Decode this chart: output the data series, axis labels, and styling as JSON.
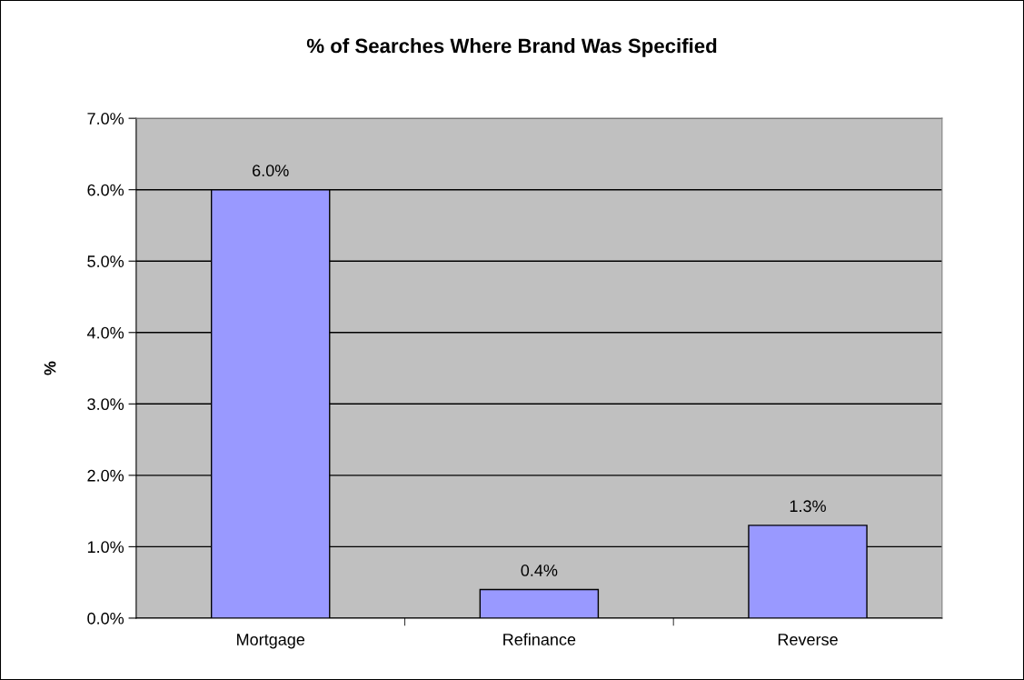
{
  "chart_data": {
    "type": "bar",
    "title": "% of Searches Where Brand Was Specified",
    "ylabel": "%",
    "categories": [
      "Mortgage",
      "Refinance",
      "Reverse"
    ],
    "values": [
      6.0,
      0.4,
      1.3
    ],
    "color": "#9999ff",
    "value_labels": [
      "6.0%",
      "0.4%",
      "1.3%"
    ],
    "ylim": [
      0,
      7
    ],
    "yticks": [
      {
        "value": 0,
        "label": "0.0%"
      },
      {
        "value": 1,
        "label": "1.0%"
      },
      {
        "value": 2,
        "label": "2.0%"
      },
      {
        "value": 3,
        "label": "3.0%"
      },
      {
        "value": 4,
        "label": "4.0%"
      },
      {
        "value": 5,
        "label": "5.0%"
      },
      {
        "value": 6,
        "label": "6.0%"
      },
      {
        "value": 7,
        "label": "7.0%"
      }
    ],
    "grid": "y"
  }
}
